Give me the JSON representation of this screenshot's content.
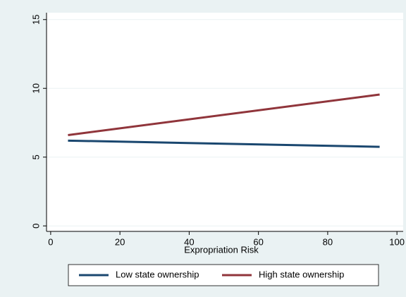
{
  "chart_data": {
    "type": "line",
    "x": [
      5,
      95
    ],
    "series": [
      {
        "name": "Low state ownership",
        "color": "#1a476f",
        "values": [
          6.2,
          5.75
        ]
      },
      {
        "name": "High state ownership",
        "color": "#90353b",
        "values": [
          6.6,
          9.55
        ]
      }
    ],
    "xlabel": "Expropriation Risk",
    "xlim": [
      -1.2,
      101.8
    ],
    "xticks": [
      0,
      20,
      40,
      60,
      80,
      100
    ],
    "ylim": [
      -0.4,
      15.5
    ],
    "yticks": [
      0,
      5,
      10,
      15
    ],
    "grid": true,
    "legend": "bottom"
  }
}
